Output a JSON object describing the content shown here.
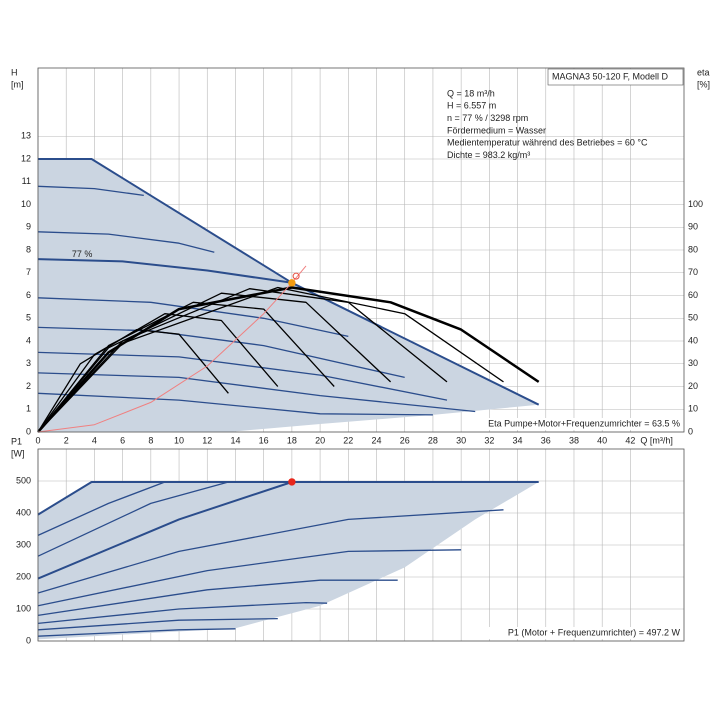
{
  "chart_data": [
    {
      "type": "line",
      "ylabel": [
        "H",
        "[m]"
      ],
      "y2label": [
        "eta",
        "[%]"
      ],
      "xlabel": "Q [m³/h]",
      "model": "MAGNA3 50-120 F, Modell D",
      "info_lines": [
        "Q = 18 m³/h",
        "H = 6.557 m",
        "n = 77 % / 3298 rpm",
        "Fördermedium = Wasser",
        "Medientemperatur während des Betriebes = 60 °C",
        "Dichte = 983.2 kg/m³"
      ],
      "note": "Eta Pumpe+Motor+Frequenzumrichter = 63.5 %",
      "xlim": [
        0,
        45.8
      ],
      "xticks": [
        0,
        2,
        4,
        6,
        8,
        10,
        12,
        14,
        16,
        18,
        20,
        22,
        24,
        26,
        28,
        30,
        32,
        34,
        36,
        38,
        40,
        42
      ],
      "ylim": [
        0,
        16
      ],
      "yticks": [
        0,
        1,
        2,
        3,
        4,
        5,
        6,
        7,
        8,
        9,
        10,
        11,
        12,
        13
      ],
      "y2lim": [
        0,
        160
      ],
      "y2ticks": [
        0,
        10,
        20,
        30,
        40,
        50,
        60,
        70,
        80,
        90,
        100
      ],
      "grid": true,
      "series": [
        {
          "fill": "#cbd5e1",
          "x": [
            0,
            3.8,
            18,
            35.5,
            28,
            20,
            13.5,
            0
          ],
          "values": [
            12,
            12,
            6.56,
            1.2,
            0.75,
            0.35,
            0,
            0
          ]
        },
        {
          "color": "#2b4d8c",
          "width": 2,
          "x": [
            0,
            3.8,
            18,
            35.5
          ],
          "values": [
            12,
            12,
            6.56,
            1.2
          ]
        },
        {
          "color": "#2b4d8c",
          "width": 1.3,
          "x": [
            0,
            4,
            7.5
          ],
          "values": [
            10.8,
            10.7,
            10.4
          ]
        },
        {
          "color": "#2b4d8c",
          "width": 1.3,
          "x": [
            0,
            5,
            10,
            12.5
          ],
          "values": [
            8.8,
            8.7,
            8.3,
            7.9
          ]
        },
        {
          "color": "#2b4d8c",
          "width": 2,
          "x": [
            0,
            6,
            12,
            18
          ],
          "values": [
            7.6,
            7.5,
            7.1,
            6.56
          ]
        },
        {
          "color": "#2b4d8c",
          "width": 1.3,
          "x": [
            0,
            8,
            16,
            22
          ],
          "values": [
            5.9,
            5.7,
            5.0,
            4.2
          ]
        },
        {
          "color": "#2b4d8c",
          "width": 1.3,
          "x": [
            0,
            8,
            16,
            26
          ],
          "values": [
            4.6,
            4.45,
            3.8,
            2.4
          ]
        },
        {
          "color": "#2b4d8c",
          "width": 1.3,
          "x": [
            0,
            10,
            20,
            29
          ],
          "values": [
            3.5,
            3.3,
            2.5,
            1.4
          ]
        },
        {
          "color": "#2b4d8c",
          "width": 1.3,
          "x": [
            0,
            10,
            20,
            31
          ],
          "values": [
            2.6,
            2.4,
            1.6,
            0.9
          ]
        },
        {
          "color": "#2b4d8c",
          "width": 1.3,
          "x": [
            0,
            10,
            20,
            28
          ],
          "values": [
            1.7,
            1.4,
            0.8,
            0.75
          ]
        },
        {
          "color": "#000000",
          "width": 1.3,
          "axis": "y2",
          "x": [
            0,
            3,
            7,
            10,
            13.5
          ],
          "values": [
            0,
            30,
            45,
            43,
            17
          ]
        },
        {
          "color": "#000000",
          "width": 1.3,
          "axis": "y2",
          "x": [
            0,
            4,
            9,
            13,
            17
          ],
          "values": [
            0,
            34,
            52,
            49,
            20
          ]
        },
        {
          "color": "#000000",
          "width": 1.3,
          "axis": "y2",
          "x": [
            0,
            5,
            11,
            16,
            21
          ],
          "values": [
            0,
            38,
            57,
            54,
            20
          ]
        },
        {
          "color": "#000000",
          "width": 1.3,
          "axis": "y2",
          "x": [
            0,
            5,
            13,
            19,
            25
          ],
          "values": [
            0,
            37,
            61,
            57,
            22
          ]
        },
        {
          "color": "#000000",
          "width": 1.3,
          "axis": "y2",
          "x": [
            0,
            6,
            15,
            22,
            29
          ],
          "values": [
            0,
            40,
            63,
            57,
            22
          ]
        },
        {
          "color": "#000000",
          "width": 1.3,
          "axis": "y2",
          "x": [
            0,
            6,
            17,
            26,
            33
          ],
          "values": [
            0,
            39,
            63.5,
            52,
            22
          ]
        },
        {
          "color": "#000000",
          "width": 2.5,
          "axis": "y2",
          "x": [
            0,
            5,
            10,
            18,
            25,
            30,
            35.5
          ],
          "values": [
            0,
            35,
            54,
            63.5,
            57,
            45,
            22
          ]
        },
        {
          "color": "#f08080",
          "width": 1,
          "x": [
            0,
            4,
            8,
            12,
            16,
            18,
            19
          ],
          "values": [
            0,
            0.32,
            1.3,
            2.9,
            5.2,
            6.56,
            7.3
          ]
        }
      ],
      "points": [
        {
          "x": 18,
          "y": 6.557,
          "color": "#f39c12"
        },
        {
          "x": 18.3,
          "y": 6.85,
          "color": "#e74c3c",
          "hollow": true
        }
      ],
      "annotations": [
        {
          "text": "77 %",
          "x": 2.4,
          "y": 7.8
        }
      ]
    },
    {
      "type": "line",
      "ylabel": [
        "P1",
        "[W]"
      ],
      "note": "P1 (Motor + Frequenzumrichter) = 497.2 W",
      "xlim": [
        0,
        45.8
      ],
      "ylim": [
        0,
        600
      ],
      "yticks": [
        0,
        100,
        200,
        300,
        400,
        500
      ],
      "grid": true,
      "series": [
        {
          "fill": "#cbd5e1",
          "x": [
            0,
            3.8,
            35.5,
            31,
            26,
            20,
            14,
            0
          ],
          "values": [
            395,
            497,
            497,
            380,
            230,
            110,
            40,
            5
          ]
        },
        {
          "color": "#2b4d8c",
          "width": 2,
          "x": [
            0,
            3.8,
            35.5
          ],
          "values": [
            395,
            497,
            497
          ]
        },
        {
          "color": "#2b4d8c",
          "width": 1.3,
          "x": [
            0,
            5,
            9
          ],
          "values": [
            330,
            430,
            497
          ]
        },
        {
          "color": "#2b4d8c",
          "width": 1.3,
          "x": [
            0,
            8,
            13.5
          ],
          "values": [
            265,
            430,
            497
          ]
        },
        {
          "color": "#2b4d8c",
          "width": 2,
          "x": [
            0,
            10,
            18
          ],
          "values": [
            195,
            380,
            497
          ]
        },
        {
          "color": "#2b4d8c",
          "width": 1.3,
          "x": [
            0,
            10,
            22,
            33
          ],
          "values": [
            150,
            280,
            380,
            410
          ]
        },
        {
          "color": "#2b4d8c",
          "width": 1.3,
          "x": [
            0,
            12,
            22,
            30
          ],
          "values": [
            110,
            220,
            280,
            285
          ]
        },
        {
          "color": "#2b4d8c",
          "width": 1.3,
          "x": [
            0,
            12,
            20,
            25.5
          ],
          "values": [
            80,
            160,
            190,
            190
          ]
        },
        {
          "color": "#2b4d8c",
          "width": 1.3,
          "x": [
            0,
            10,
            19,
            20.5
          ],
          "values": [
            55,
            100,
            120,
            118
          ]
        },
        {
          "color": "#2b4d8c",
          "width": 1.3,
          "x": [
            0,
            10,
            17
          ],
          "values": [
            35,
            65,
            70
          ]
        },
        {
          "color": "#2b4d8c",
          "width": 1.3,
          "x": [
            0,
            10,
            14
          ],
          "values": [
            15,
            35,
            38
          ]
        }
      ],
      "points": [
        {
          "x": 18,
          "y": 497.2,
          "color": "#e8261b"
        }
      ]
    }
  ]
}
